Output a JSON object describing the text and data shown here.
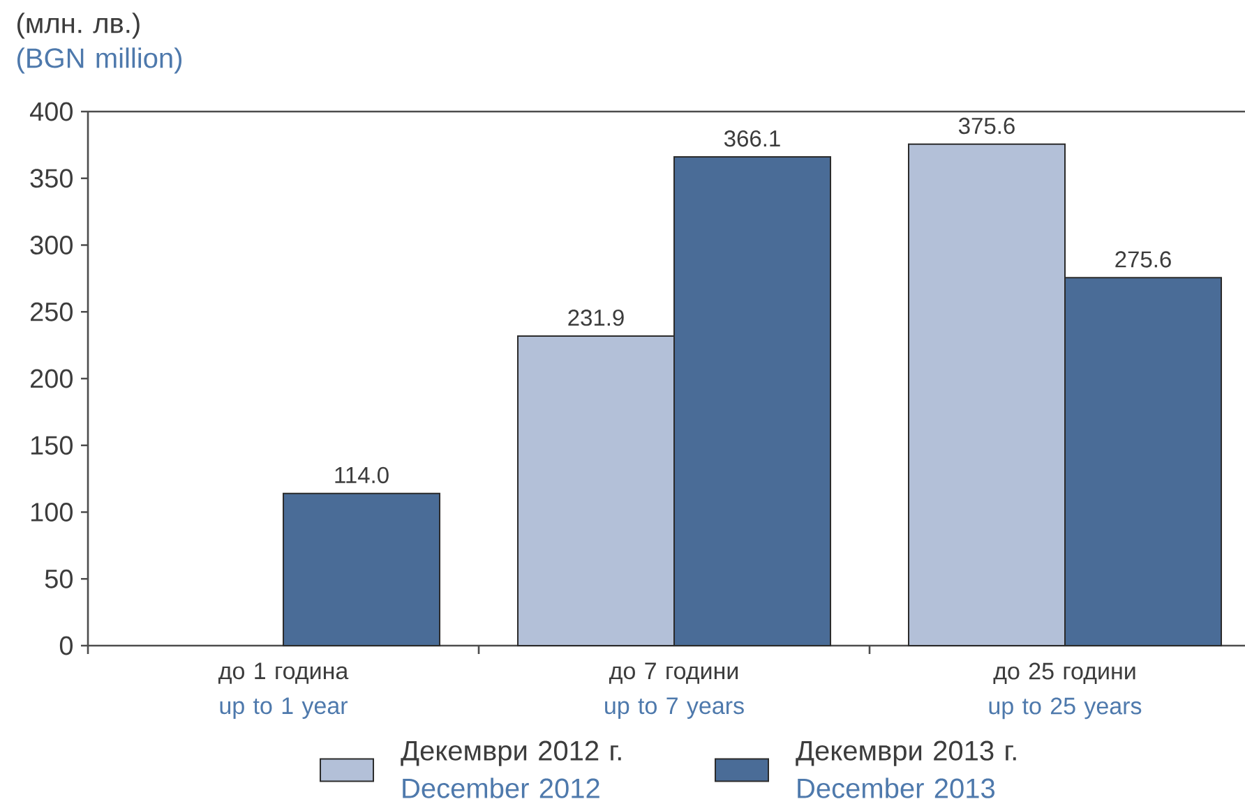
{
  "chart_data": {
    "type": "bar",
    "ylabel": "(млн. лв.)\n(BGN million)",
    "categories": [
      "до 1 година\nup to 1 year",
      "до 7 години\nup to 7 years",
      "до 25 години\nup to 25 years"
    ],
    "series": [
      {
        "name": "Декември 2012 г.\nDecember 2012",
        "color": "#b3c0d8",
        "values": [
          null,
          231.9,
          375.6
        ],
        "value_labels": [
          null,
          "231.9",
          "375.6"
        ]
      },
      {
        "name": "Декември 2013 г.\nDecember 2013",
        "color": "#4a6c97",
        "values": [
          114.0,
          366.1,
          275.6
        ],
        "value_labels": [
          "114.0",
          "366.1",
          "275.6"
        ]
      }
    ],
    "ylim": [
      0,
      400
    ],
    "yticks": [
      0,
      50,
      100,
      150,
      200,
      250,
      300,
      350,
      400
    ],
    "legend": "bottom"
  }
}
